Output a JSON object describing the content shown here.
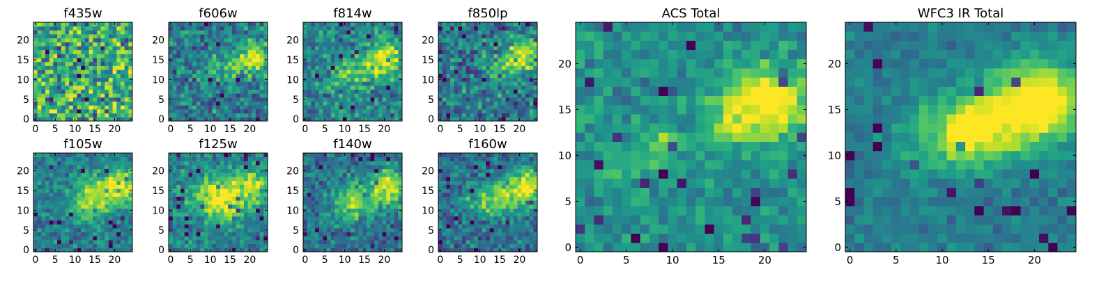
{
  "figure": {
    "background": "#ffffff",
    "colormap": "viridis"
  },
  "chart_data": [
    {
      "type": "heatmap",
      "title": "f435w",
      "xlim": [
        -0.5,
        24.5
      ],
      "ylim": [
        -0.5,
        24.5
      ],
      "xticks": [
        0,
        5,
        10,
        15,
        20
      ],
      "yticks": [
        0,
        5,
        10,
        15,
        20
      ],
      "grid": false,
      "field": {
        "seed": 11,
        "noise": 0.58,
        "floor": 0.62,
        "amp": 0.1,
        "blobs": [
          [
            21,
            15,
            3,
            0.15
          ],
          [
            13,
            12,
            3,
            0.08
          ]
        ]
      }
    },
    {
      "type": "heatmap",
      "title": "f606w",
      "xlim": [
        -0.5,
        24.5
      ],
      "ylim": [
        -0.5,
        24.5
      ],
      "xticks": [
        0,
        5,
        10,
        15,
        20
      ],
      "yticks": [
        0,
        5,
        10,
        15,
        20
      ],
      "grid": false,
      "field": {
        "seed": 23,
        "noise": 0.38,
        "floor": 0.42,
        "amp": 0.45,
        "blobs": [
          [
            22,
            16,
            2.5,
            0.55
          ],
          [
            17,
            14,
            3,
            0.3
          ],
          [
            10,
            12,
            3,
            0.15
          ]
        ]
      }
    },
    {
      "type": "heatmap",
      "title": "f814w",
      "xlim": [
        -0.5,
        24.5
      ],
      "ylim": [
        -0.5,
        24.5
      ],
      "xticks": [
        0,
        5,
        10,
        15,
        20
      ],
      "yticks": [
        0,
        5,
        10,
        15,
        20
      ],
      "grid": false,
      "field": {
        "seed": 37,
        "noise": 0.38,
        "floor": 0.45,
        "amp": 0.45,
        "blobs": [
          [
            21,
            16,
            3,
            0.55
          ],
          [
            16,
            13,
            3,
            0.3
          ],
          [
            10,
            12,
            3,
            0.2
          ]
        ]
      }
    },
    {
      "type": "heatmap",
      "title": "f850lp",
      "xlim": [
        -0.5,
        24.5
      ],
      "ylim": [
        -0.5,
        24.5
      ],
      "xticks": [
        0,
        5,
        10,
        15,
        20
      ],
      "yticks": [
        0,
        5,
        10,
        15,
        20
      ],
      "grid": false,
      "field": {
        "seed": 41,
        "noise": 0.4,
        "floor": 0.4,
        "amp": 0.45,
        "blobs": [
          [
            21,
            16,
            3,
            0.55
          ],
          [
            16,
            13,
            3,
            0.25
          ]
        ]
      }
    },
    {
      "type": "heatmap",
      "title": "f105w",
      "xlim": [
        -0.5,
        24.5
      ],
      "ylim": [
        -0.5,
        24.5
      ],
      "xticks": [
        0,
        5,
        10,
        15,
        20
      ],
      "yticks": [
        0,
        5,
        10,
        15,
        20
      ],
      "grid": false,
      "field": {
        "seed": 53,
        "noise": 0.3,
        "floor": 0.42,
        "amp": 0.5,
        "blobs": [
          [
            22,
            16,
            3,
            0.55
          ],
          [
            13,
            12,
            3.5,
            0.35
          ],
          [
            17,
            15,
            3,
            0.25
          ]
        ]
      }
    },
    {
      "type": "heatmap",
      "title": "f125w",
      "xlim": [
        -0.5,
        24.5
      ],
      "ylim": [
        -0.5,
        24.5
      ],
      "xticks": [
        0,
        5,
        10,
        15,
        20
      ],
      "yticks": [
        0,
        5,
        10,
        15,
        20
      ],
      "grid": false,
      "field": {
        "seed": 67,
        "noise": 0.3,
        "floor": 0.45,
        "amp": 0.55,
        "blobs": [
          [
            13,
            13,
            3.5,
            0.55
          ],
          [
            21,
            16,
            3,
            0.45
          ],
          [
            6,
            14,
            3,
            0.15
          ]
        ]
      }
    },
    {
      "type": "heatmap",
      "title": "f140w",
      "xlim": [
        -0.5,
        24.5
      ],
      "ylim": [
        -0.5,
        24.5
      ],
      "xticks": [
        0,
        5,
        10,
        15,
        20
      ],
      "yticks": [
        0,
        5,
        10,
        15,
        20
      ],
      "grid": false,
      "field": {
        "seed": 79,
        "noise": 0.32,
        "floor": 0.38,
        "amp": 0.55,
        "blobs": [
          [
            21,
            16,
            3,
            0.55
          ],
          [
            12,
            12,
            3.5,
            0.4
          ]
        ]
      }
    },
    {
      "type": "heatmap",
      "title": "f160w",
      "xlim": [
        -0.5,
        24.5
      ],
      "ylim": [
        -0.5,
        24.5
      ],
      "xticks": [
        0,
        5,
        10,
        15,
        20
      ],
      "yticks": [
        0,
        5,
        10,
        15,
        20
      ],
      "grid": false,
      "field": {
        "seed": 97,
        "noise": 0.32,
        "floor": 0.36,
        "amp": 0.55,
        "blobs": [
          [
            22,
            16,
            3,
            0.6
          ],
          [
            16,
            13,
            3,
            0.4
          ],
          [
            10,
            12,
            3,
            0.25
          ]
        ]
      }
    },
    {
      "type": "heatmap",
      "title": "ACS Total",
      "xlim": [
        -0.5,
        24.5
      ],
      "ylim": [
        -0.5,
        24.5
      ],
      "xticks": [
        0,
        5,
        10,
        15,
        20
      ],
      "yticks": [
        0,
        5,
        10,
        15,
        20
      ],
      "grid": false,
      "field": {
        "seed": 131,
        "noise": 0.24,
        "floor": 0.5,
        "amp": 0.55,
        "blobs": [
          [
            21,
            16,
            2.5,
            0.5
          ],
          [
            17,
            14,
            2.5,
            0.3
          ],
          [
            9,
            11,
            1.5,
            0.28
          ],
          [
            4,
            9,
            1.2,
            0.2
          ]
        ]
      }
    },
    {
      "type": "heatmap",
      "title": "WFC3 IR Total",
      "xlim": [
        -0.5,
        24.5
      ],
      "ylim": [
        -0.5,
        24.5
      ],
      "xticks": [
        0,
        5,
        10,
        15,
        20
      ],
      "yticks": [
        0,
        5,
        10,
        15,
        20
      ],
      "grid": false,
      "field": {
        "seed": 151,
        "noise": 0.18,
        "floor": 0.42,
        "amp": 0.6,
        "blobs": [
          [
            21,
            16,
            3,
            0.55
          ],
          [
            13,
            12.5,
            2.5,
            0.45
          ],
          [
            17,
            14,
            3,
            0.25
          ],
          [
            8,
            12,
            3,
            0.15
          ]
        ]
      }
    }
  ]
}
